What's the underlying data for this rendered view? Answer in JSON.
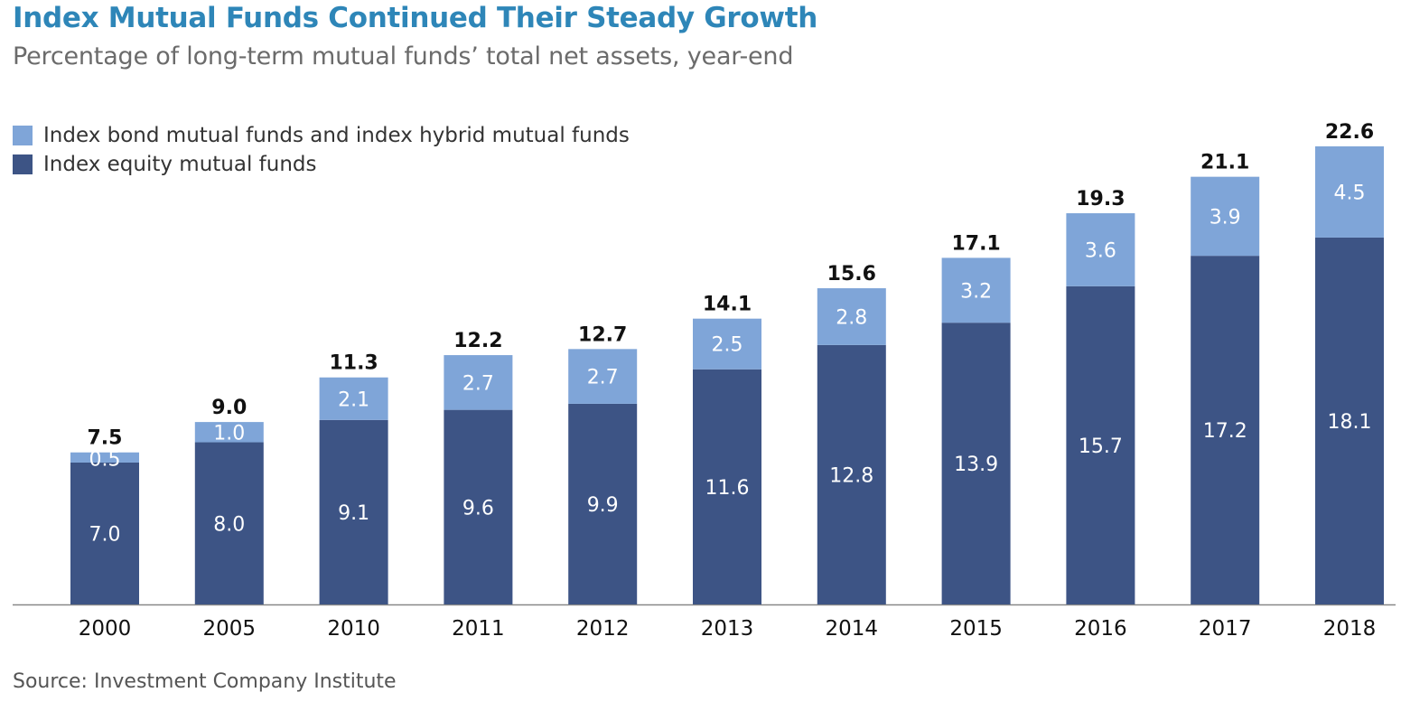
{
  "header": {
    "title": "Index Mutual Funds Continued Their Steady Growth",
    "subtitle": "Percentage of long-term mutual funds’ total net assets, year-end"
  },
  "footer": {
    "source": "Source: Investment Company Institute"
  },
  "colors": {
    "equity": "#3d5485",
    "bond_hybrid": "#7fa5d8",
    "axis": "#888888",
    "title": "#2e86b8"
  },
  "chart_data": {
    "type": "bar",
    "stacked": true,
    "title": "Index Mutual Funds Continued Their Steady Growth",
    "subtitle": "Percentage of long-term mutual funds’ total net assets, year-end",
    "categories": [
      "2000",
      "2005",
      "2010",
      "2011",
      "2012",
      "2013",
      "2014",
      "2015",
      "2016",
      "2017",
      "2018"
    ],
    "series": [
      {
        "name": "Index equity mutual funds",
        "values": [
          7.0,
          8.0,
          9.1,
          9.6,
          9.9,
          11.6,
          12.8,
          13.9,
          15.7,
          17.2,
          18.1
        ]
      },
      {
        "name": "Index bond mutual funds and index hybrid mutual funds",
        "values": [
          0.5,
          1.0,
          2.1,
          2.7,
          2.7,
          2.5,
          2.8,
          3.2,
          3.6,
          3.9,
          4.5
        ]
      }
    ],
    "totals": [
      "7.5",
      "9.0",
      "11.3",
      "12.2",
      "12.7",
      "14.1",
      "15.6",
      "17.1",
      "19.3",
      "21.1",
      "22.6"
    ],
    "segment_labels": {
      "equity": [
        "7.0",
        "8.0",
        "9.1",
        "9.6",
        "9.9",
        "11.6",
        "12.8",
        "13.9",
        "15.7",
        "17.2",
        "18.1"
      ],
      "bond_hybrid": [
        "0.5",
        "1.0",
        "2.1",
        "2.7",
        "2.7",
        "2.5",
        "2.8",
        "3.2",
        "3.6",
        "3.9",
        "4.5"
      ]
    },
    "ylim": [
      0,
      22.6
    ],
    "grid": false,
    "legend": [
      "Index bond mutual funds and index hybrid mutual funds",
      "Index equity mutual funds"
    ],
    "legend_position": "top-left",
    "source": "Source: Investment Company Institute"
  }
}
